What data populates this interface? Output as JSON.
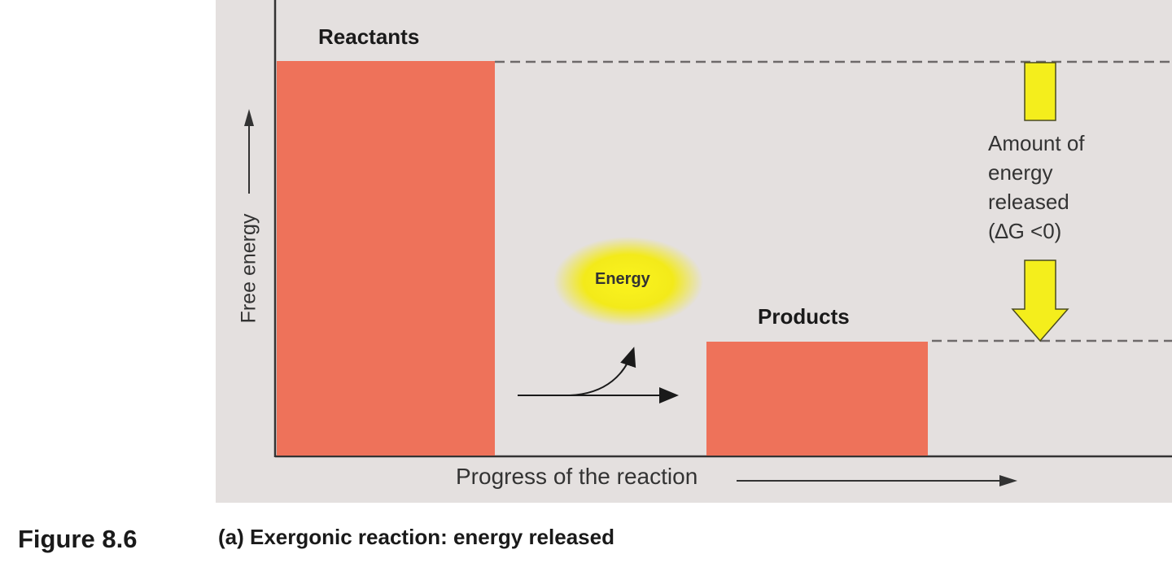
{
  "labels": {
    "reactants": "Reactants",
    "products": "Products",
    "energy_burst": "Energy",
    "y_axis": "Free energy",
    "x_axis": "Progress of the reaction"
  },
  "annotation": {
    "lines": [
      "Amount of",
      "energy",
      "released",
      "(∆G <0)"
    ]
  },
  "caption": {
    "figure_number": "Figure 8.6",
    "text": "(a) Exergonic reaction: energy released"
  },
  "colors": {
    "panel_background": "#e4e0df",
    "bars": "#ee725a",
    "arrow_yellow": "#f4ee1c",
    "energy_glow": "#f3ea1a",
    "axis": "#333333"
  }
}
